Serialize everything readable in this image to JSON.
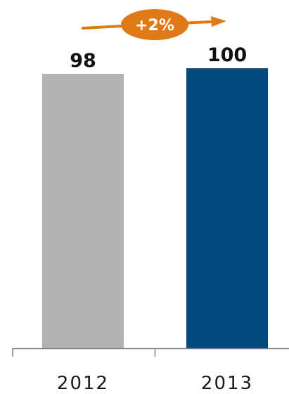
{
  "chart_data": {
    "type": "bar",
    "title": "",
    "xlabel": "",
    "ylabel": "",
    "categories": [
      "2012",
      "2013"
    ],
    "values": [
      98,
      100
    ],
    "value_labels": [
      "98",
      "100"
    ],
    "ylim": [
      0,
      100
    ],
    "grid": false,
    "legend": "none",
    "bar_colors": [
      "#b3b3b3",
      "#004a80"
    ],
    "annotation": {
      "text": "+2%",
      "from": "2012",
      "to": "2013",
      "color": "#e07a17"
    }
  }
}
